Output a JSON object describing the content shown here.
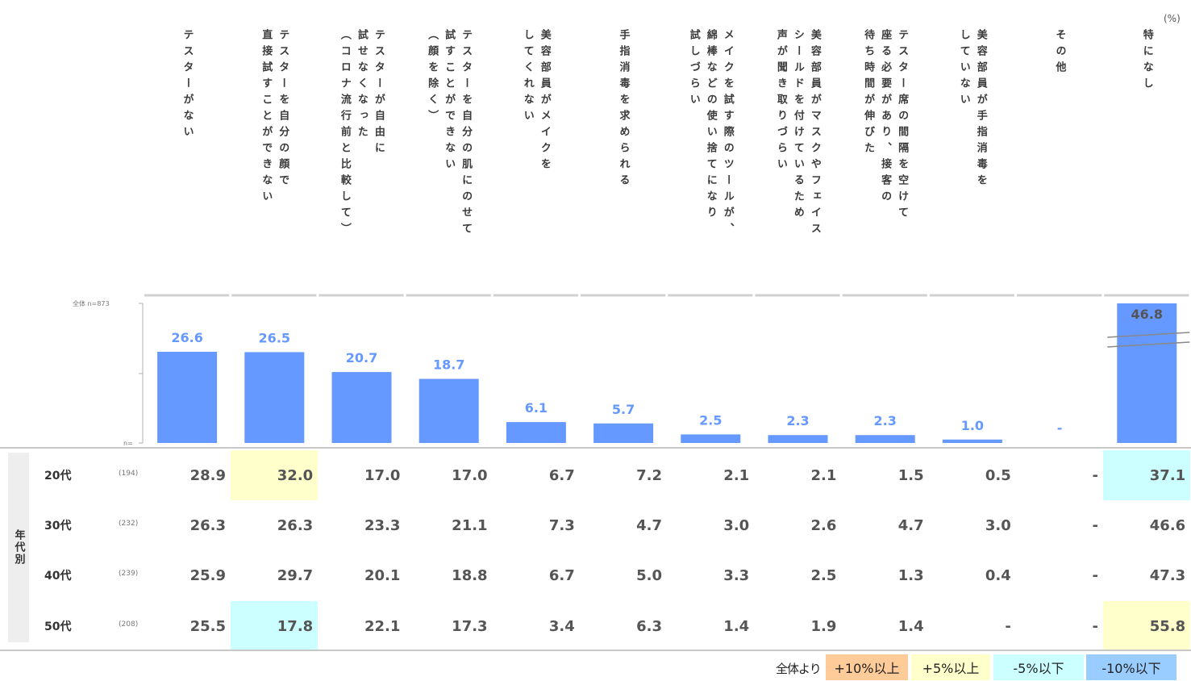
{
  "unit_label": "(%)",
  "colors": {
    "bar": "#6699ff",
    "bar_label": "#6699ff",
    "top_bar_label": "#555555",
    "plus10": "#ffcc99",
    "plus5": "#ffffcc",
    "minus5": "#ccffff",
    "minus10": "#99ccff"
  },
  "chart_data": {
    "type": "bar",
    "axis_note": "全体 n=873",
    "axis_bottom": "n=",
    "categories": [
      [
        "テスターがない"
      ],
      [
        "テスターを自分の顔で",
        "直接試すことができない"
      ],
      [
        "テスターが自由に",
        "試せなくなった",
        "（コロナ流行前と比較して）"
      ],
      [
        "テスターを自分の肌にのせて",
        "試すことができない",
        "（顔を除く）"
      ],
      [
        "美容部員がメイクを",
        "してくれない"
      ],
      [
        "手指消毒を求められる"
      ],
      [
        "メイクを試す際のツールが、",
        "綿棒などの使い捨てになり",
        "試しづらい"
      ],
      [
        "美容部員がマスクやフェイス",
        "シールドを付けているため",
        "声が聞き取りづらい"
      ],
      [
        "テスター席の間隔を空けて",
        "座る必要があり、接客の",
        "待ち時間が伸びた"
      ],
      [
        "美容部員が手指消毒を",
        "していない"
      ],
      [
        "その他"
      ],
      [
        "特になし"
      ]
    ],
    "values": [
      26.6,
      26.5,
      20.7,
      18.7,
      6.1,
      5.7,
      2.5,
      2.3,
      2.3,
      1.0,
      null,
      46.8
    ],
    "value_labels": [
      "26.6",
      "26.5",
      "20.7",
      "18.7",
      "6.1",
      "5.7",
      "2.5",
      "2.3",
      "2.3",
      "1.0",
      "-",
      "46.8"
    ],
    "axis_break_category": 11,
    "ylim": [
      0,
      30
    ]
  },
  "age_table": {
    "side_label": "年代別",
    "rows": [
      {
        "label": "20代",
        "n": "(194)",
        "values": [
          "28.9",
          "32.0",
          "17.0",
          "17.0",
          "6.7",
          "7.2",
          "2.1",
          "2.1",
          "1.5",
          "0.5",
          "-",
          "37.1"
        ],
        "highlight": [
          "",
          "plus5",
          "",
          "",
          "",
          "",
          "",
          "",
          "",
          "",
          "",
          "minus5"
        ]
      },
      {
        "label": "30代",
        "n": "(232)",
        "values": [
          "26.3",
          "26.3",
          "23.3",
          "21.1",
          "7.3",
          "4.7",
          "3.0",
          "2.6",
          "4.7",
          "3.0",
          "-",
          "46.6"
        ],
        "highlight": [
          "",
          "",
          "",
          "",
          "",
          "",
          "",
          "",
          "",
          "",
          "",
          ""
        ]
      },
      {
        "label": "40代",
        "n": "(239)",
        "values": [
          "25.9",
          "29.7",
          "20.1",
          "18.8",
          "6.7",
          "5.0",
          "3.3",
          "2.5",
          "1.3",
          "0.4",
          "-",
          "47.3"
        ],
        "highlight": [
          "",
          "",
          "",
          "",
          "",
          "",
          "",
          "",
          "",
          "",
          "",
          ""
        ]
      },
      {
        "label": "50代",
        "n": "(208)",
        "values": [
          "25.5",
          "17.8",
          "22.1",
          "17.3",
          "3.4",
          "6.3",
          "1.4",
          "1.9",
          "1.4",
          "-",
          "-",
          "55.8"
        ],
        "highlight": [
          "",
          "minus5",
          "",
          "",
          "",
          "",
          "",
          "",
          "",
          "",
          "",
          "plus5"
        ]
      }
    ]
  },
  "legend": {
    "prefix": "全体より",
    "items": [
      {
        "key": "plus10",
        "label": "+10%以上"
      },
      {
        "key": "plus5",
        "label": "+5%以上"
      },
      {
        "key": "minus5",
        "label": "-5%以下"
      },
      {
        "key": "minus10",
        "label": "-10%以下"
      }
    ]
  }
}
